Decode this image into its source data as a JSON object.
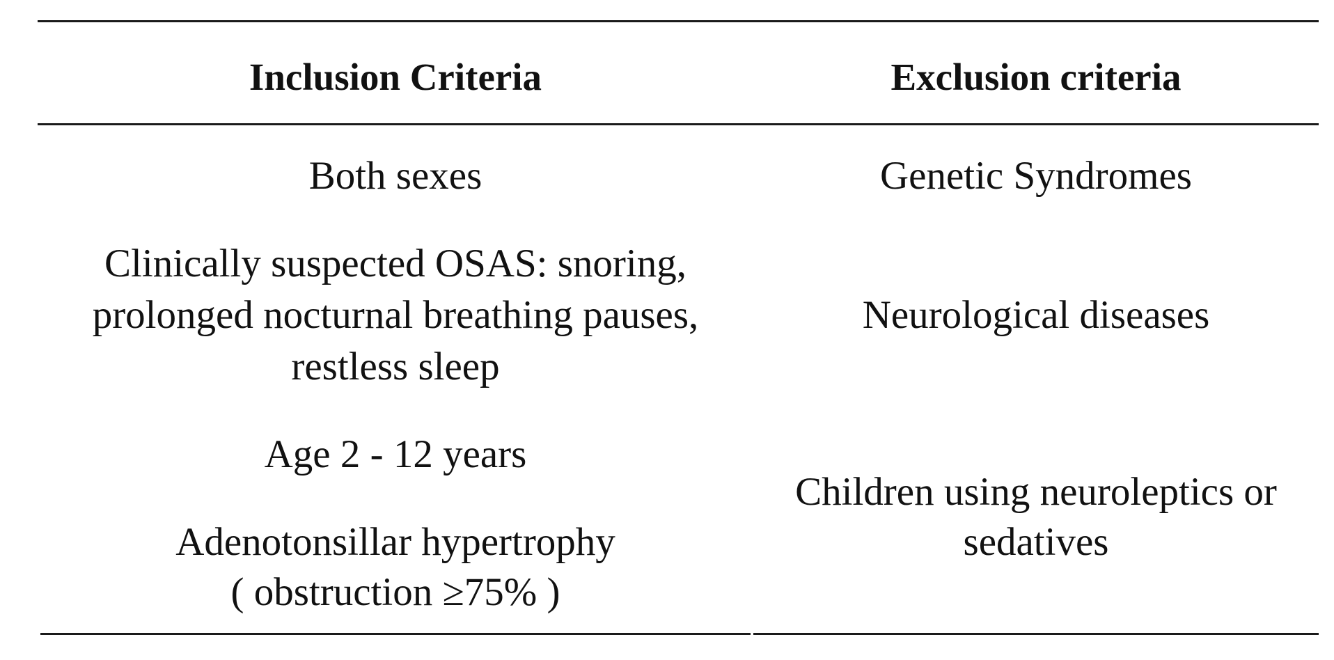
{
  "table": {
    "headers": {
      "inclusion": "Inclusion Criteria",
      "exclusion": "Exclusion criteria"
    },
    "inclusion": [
      "Both sexes",
      "Clinically suspected OSAS: snoring,",
      "prolonged nocturnal breathing pauses,",
      "restless sleep",
      "Age 2 - 12 years",
      "Adenotonsillar hypertrophy",
      "( obstruction ≥75% )"
    ],
    "exclusion": [
      "Genetic Syndromes",
      "Neurological diseases",
      "Children using neuroleptics or",
      "sedatives"
    ]
  }
}
